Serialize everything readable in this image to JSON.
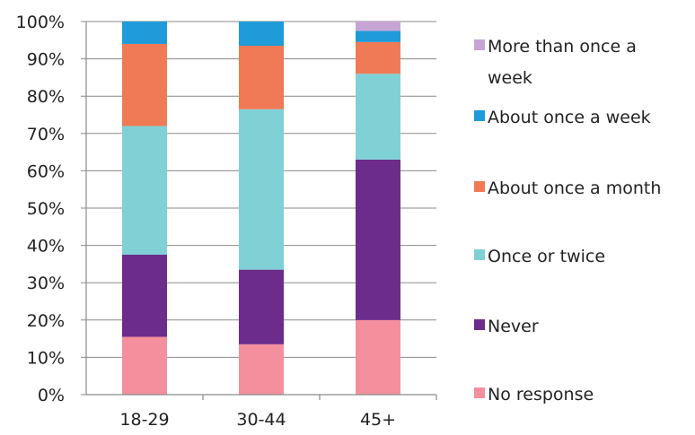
{
  "chart_data": {
    "type": "bar",
    "stacked": true,
    "categories": [
      "18-29",
      "30-44",
      "45+"
    ],
    "ylim": [
      0,
      100
    ],
    "y_ticks": [
      "0%",
      "10%",
      "20%",
      "30%",
      "40%",
      "50%",
      "60%",
      "70%",
      "80%",
      "90%",
      "100%"
    ],
    "grid": true,
    "legend_position": "right",
    "series": [
      {
        "name": "No response",
        "color": "#f4909d",
        "values": [
          15.5,
          13.5,
          20
        ]
      },
      {
        "name": "Never",
        "color": "#6b2c8c",
        "values": [
          22,
          20,
          43
        ]
      },
      {
        "name": "Once or twice",
        "color": "#7fd1d6",
        "values": [
          34.5,
          43,
          23
        ]
      },
      {
        "name": "About once a month",
        "color": "#f07a55",
        "values": [
          22,
          17,
          8.5
        ]
      },
      {
        "name": "About once a week",
        "color": "#1f9bd9",
        "values": [
          6,
          6.5,
          3
        ]
      },
      {
        "name": "More than once a week",
        "color": "#c8a4d6",
        "values": [
          0,
          0,
          2.5
        ]
      }
    ],
    "legend": [
      {
        "lines": [
          "More than once a",
          "week"
        ],
        "series_index": 5
      },
      {
        "lines": [
          "About once a week"
        ],
        "series_index": 4
      },
      {
        "lines": [
          "About once a month"
        ],
        "series_index": 3
      },
      {
        "lines": [
          "Once or twice"
        ],
        "series_index": 2
      },
      {
        "lines": [
          "Never"
        ],
        "series_index": 1
      },
      {
        "lines": [
          "No response"
        ],
        "series_index": 0
      }
    ]
  }
}
